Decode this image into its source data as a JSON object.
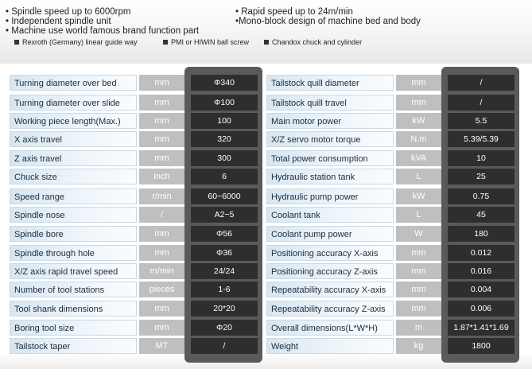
{
  "features": {
    "left": [
      "Spindle speed up to 6000rpm",
      "Independent spindle unit",
      "Machine use world famous brand function part"
    ],
    "right": [
      "Rapid speed up to 24m/min",
      "Mono-block design of machine bed and body"
    ],
    "sub_items": [
      "Rexroth (Germany)  linear guide way",
      "PMI or HIWIN ball screw",
      "Chandox chuck and cylinder"
    ]
  },
  "left_table": [
    {
      "label": "Turning diameter over bed",
      "unit": "mm",
      "value": "Φ340"
    },
    {
      "label": "Turning diameter over slide",
      "unit": "mm",
      "value": "Φ100"
    },
    {
      "label": "Working piece length(Max.)",
      "unit": "mm",
      "value": "100"
    },
    {
      "label": "X axis travel",
      "unit": "mm",
      "value": "320"
    },
    {
      "label": "Z axis travel",
      "unit": "mm",
      "value": "300"
    },
    {
      "label": "Chuck size",
      "unit": "inch",
      "value": "6"
    },
    {
      "label": "Speed range",
      "unit": "r/min",
      "value": "60~6000"
    },
    {
      "label": "Spindle nose",
      "unit": "/",
      "value": "A2~5"
    },
    {
      "label": "Spindle bore",
      "unit": "mm",
      "value": "Φ56"
    },
    {
      "label": "Spindle through hole",
      "unit": "mm",
      "value": "Φ36"
    },
    {
      "label": "X/Z axis rapid travel speed",
      "unit": "m/min",
      "value": "24/24"
    },
    {
      "label": "Number of tool stations",
      "unit": "pieces",
      "value": "1-6"
    },
    {
      "label": "Tool shank dimensions",
      "unit": "mm",
      "value": "20*20"
    },
    {
      "label": "Boring tool size",
      "unit": "mm",
      "value": "Φ20"
    },
    {
      "label": "Tailstock taper",
      "unit": "MT",
      "value": "/"
    }
  ],
  "right_table": [
    {
      "label": "Tailstock quill diameter",
      "unit": "mm",
      "value": "/"
    },
    {
      "label": "Tailstock quill travel",
      "unit": "mm",
      "value": "/"
    },
    {
      "label": "Main motor power",
      "unit": "kW",
      "value": "5.5"
    },
    {
      "label": "X/Z servo motor torque",
      "unit": "N.m",
      "value": "5.39/5.39"
    },
    {
      "label": "Total power consumption",
      "unit": "kVA",
      "value": "10"
    },
    {
      "label": "Hydraulic station tank",
      "unit": "L",
      "value": "25"
    },
    {
      "label": "Hydraulic pump power",
      "unit": "kW",
      "value": "0.75"
    },
    {
      "label": "Coolant tank",
      "unit": "L",
      "value": "45"
    },
    {
      "label": "Coolant pump power",
      "unit": "W",
      "value": "180"
    },
    {
      "label": "Positioning accuracy X-axis",
      "unit": "mm",
      "value": "0.012"
    },
    {
      "label": "Positioning accuracy Z-axis",
      "unit": "mm",
      "value": "0.016"
    },
    {
      "label": "Repeatability accuracy X-axis",
      "unit": "mm",
      "value": "0.004"
    },
    {
      "label": "Repeatability accuracy Z-axis",
      "unit": "mm",
      "value": "0.006"
    },
    {
      "label": "Overall dimensions(L*W*H)",
      "unit": "m",
      "value": "1.87*1.41*1.69"
    },
    {
      "label": "Weight",
      "unit": "kg",
      "value": "1800"
    }
  ]
}
